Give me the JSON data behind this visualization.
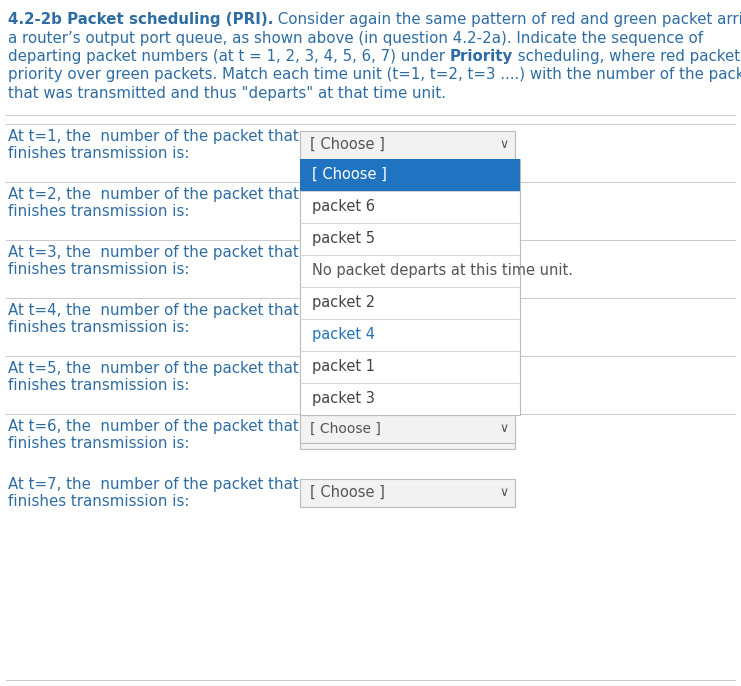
{
  "bg_color": "#ffffff",
  "text_color": "#2e6da4",
  "sep_color": "#cccccc",
  "title_lines": [
    {
      "bold": "4.2-2b Packet scheduling (PRI).",
      "normal": " Consider again the same pattern of red and green packet arrivals to"
    },
    {
      "bold": "",
      "normal": "a router’s output port queue, as shown above (in question 4.2-2a). Indicate the sequence of"
    },
    {
      "bold": "",
      "normal": "departing packet numbers (at t = 1, 2, 3, 4, 5, 6, 7) under ",
      "bold2": "Priority",
      "normal2": " scheduling, where red packets have"
    },
    {
      "bold": "",
      "normal": "priority over green packets. Match each time unit (t=1, t=2, t=3 ....) with the number of the packet"
    },
    {
      "bold": "",
      "normal": "that was transmitted and thus \"departs\" at that time unit."
    }
  ],
  "rows": [
    {
      "t": 1,
      "line1": "At t=1, the  number of the packet that",
      "line2": "finishes transmission is:",
      "show_box": true
    },
    {
      "t": 2,
      "line1": "At t=2, the  number of the packet that",
      "line2": "finishes transmission is: ",
      "show_box": false
    },
    {
      "t": 3,
      "line1": "At t=3, the  number of the packet that",
      "line2": "finishes transmission is: ",
      "show_box": false
    },
    {
      "t": 4,
      "line1": "At t=4, the  number of the packet that",
      "line2": "finishes transmission is: ",
      "show_box": false
    },
    {
      "t": 5,
      "line1": "At t=5, the  number of the packet that",
      "line2": "finishes transmission is: ",
      "show_box": false
    },
    {
      "t": 6,
      "line1": "At t=6, the  number of the packet that",
      "line2": "finishes transmission is: ",
      "show_box": true
    },
    {
      "t": 7,
      "line1": "At t=7, the  number of the packet that",
      "line2": "finishes transmission is: ",
      "show_box": true
    }
  ],
  "dropdown_items": [
    {
      "text": "[ Choose ]",
      "highlight": true,
      "color": "white",
      "bg": "#2073c0"
    },
    {
      "text": "packet 6",
      "highlight": false,
      "color": "#444444",
      "bg": "white"
    },
    {
      "text": "packet 5",
      "highlight": false,
      "color": "#444444",
      "bg": "white"
    },
    {
      "text": "No packet departs at this time unit.",
      "highlight": false,
      "color": "#555555",
      "bg": "white"
    },
    {
      "text": "packet 2",
      "highlight": false,
      "color": "#444444",
      "bg": "white"
    },
    {
      "text": "packet 4",
      "highlight": false,
      "color": "#2073c0",
      "bg": "white"
    },
    {
      "text": "packet 1",
      "highlight": false,
      "color": "#444444",
      "bg": "white"
    },
    {
      "text": "packet 3",
      "highlight": false,
      "color": "#444444",
      "bg": "white"
    }
  ],
  "choose_text": "[ Choose ]",
  "choose_fg": "#555555",
  "choose_bg": "#f2f2f2",
  "choose_border": "#bbbbbb",
  "open_drop_border": "#bbbbbb",
  "open_drop_bg": "white",
  "chevron": "∨",
  "font_size_title": 10.8,
  "font_size_row": 10.8,
  "font_size_drop": 10.5
}
